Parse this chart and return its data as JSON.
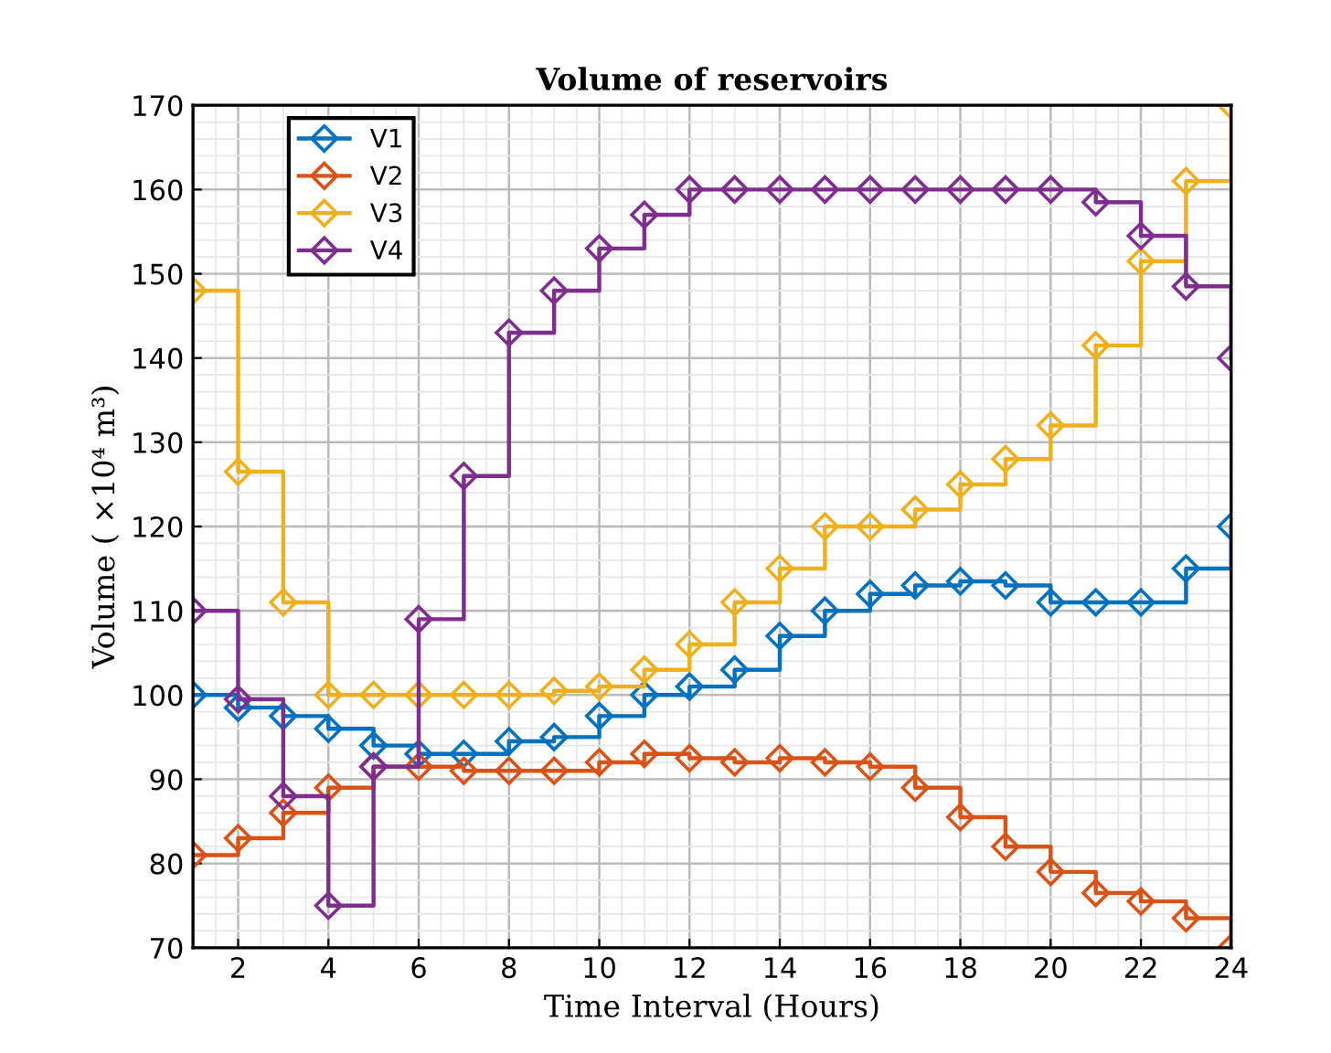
{
  "chart_data": {
    "type": "step",
    "title": "Volume of reservoirs",
    "xlabel": "Time Interval (Hours)",
    "ylabel": "Volume ( ×10⁴ m³)",
    "x": [
      1,
      2,
      3,
      4,
      5,
      6,
      7,
      8,
      9,
      10,
      11,
      12,
      13,
      14,
      15,
      16,
      17,
      18,
      19,
      20,
      21,
      22,
      23,
      24
    ],
    "series": [
      {
        "name": "V1",
        "color": "#0072bd",
        "values": [
          100,
          98.5,
          97.5,
          96,
          94,
          93,
          93,
          94.5,
          95,
          97.5,
          100,
          101,
          103,
          107,
          110,
          112,
          113,
          113.5,
          113,
          111,
          111,
          111,
          115,
          120
        ]
      },
      {
        "name": "V2",
        "color": "#d95319",
        "values": [
          81,
          83,
          86,
          89,
          91.5,
          91.5,
          91,
          91,
          91,
          92,
          93,
          92.5,
          92,
          92.5,
          92,
          91.5,
          89,
          85.5,
          82,
          79,
          76.5,
          75.5,
          73.5,
          70
        ]
      },
      {
        "name": "V3",
        "color": "#edb120",
        "values": [
          148,
          126.5,
          111,
          100,
          100,
          100,
          100,
          100,
          100.5,
          101,
          103,
          106,
          111,
          115,
          120,
          120,
          122,
          125,
          128,
          132,
          141.5,
          151.5,
          161,
          170
        ]
      },
      {
        "name": "V4",
        "color": "#7e2f8e",
        "values": [
          110,
          99.5,
          88,
          75,
          91.5,
          109,
          126,
          143,
          148,
          153,
          157,
          160,
          160,
          160,
          160,
          160,
          160,
          160,
          160,
          160,
          158.5,
          154.5,
          148.5,
          140
        ]
      }
    ],
    "xlim": [
      1,
      24
    ],
    "ylim": [
      70,
      170
    ],
    "xticks": [
      2,
      4,
      6,
      8,
      10,
      12,
      14,
      16,
      18,
      20,
      22,
      24
    ],
    "yticks": [
      70,
      80,
      90,
      100,
      110,
      120,
      130,
      140,
      150,
      160,
      170
    ],
    "grid": true,
    "legend": "top left",
    "marker": "diamond",
    "line_style": "solid"
  }
}
